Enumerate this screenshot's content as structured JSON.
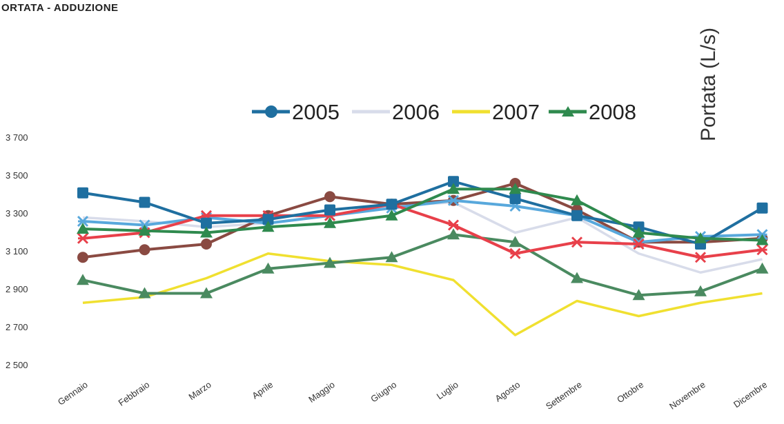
{
  "chart_data": {
    "type": "line",
    "title": "ORTATA - ADDUZIONE",
    "ylabel": "Portata (L/s)",
    "xlabel": "",
    "ylim": [
      2500,
      3700
    ],
    "yticks": [
      {
        "value": 3700,
        "label": "3 700"
      },
      {
        "value": 3500,
        "label": "3 500"
      },
      {
        "value": 3300,
        "label": "3 300"
      },
      {
        "value": 3100,
        "label": "3 100"
      },
      {
        "value": 2900,
        "label": "2 900"
      },
      {
        "value": 2700,
        "label": "2 700"
      },
      {
        "value": 2500,
        "label": "2 500"
      }
    ],
    "categories": [
      "Gennaio",
      "Febbraio",
      "Marzo",
      "Aprile",
      "Maggio",
      "Giugno",
      "Luglio",
      "Agosto",
      "Settembre",
      "Ottobre",
      "Novembre",
      "Dicembre"
    ],
    "legend_position": "top",
    "grid": false,
    "series": [
      {
        "name": "2005",
        "color": "#1f6fa0",
        "marker": "square",
        "in_legend": true,
        "values": [
          3410,
          3360,
          3250,
          3270,
          3320,
          3350,
          3470,
          3380,
          3290,
          3230,
          3140,
          3330
        ]
      },
      {
        "name": "2006",
        "color": "#d8dcea",
        "marker": "none",
        "in_legend": true,
        "values": [
          3280,
          3260,
          3230,
          3250,
          3290,
          3340,
          3360,
          3200,
          3280,
          3090,
          2990,
          3060
        ]
      },
      {
        "name": "2007",
        "color": "#f0e030",
        "marker": "none",
        "in_legend": true,
        "values": [
          2830,
          2860,
          2960,
          3090,
          3050,
          3030,
          2950,
          2660,
          2840,
          2760,
          2830,
          2880
        ]
      },
      {
        "name": "2008",
        "color": "#2f8a4e",
        "marker": "triangle",
        "in_legend": true,
        "values": [
          3220,
          3210,
          3200,
          3230,
          3250,
          3290,
          3430,
          3430,
          3370,
          3200,
          3170,
          3160
        ]
      },
      {
        "color": "#58a8dc",
        "marker": "x",
        "in_legend": false,
        "values": [
          3260,
          3240,
          3280,
          3250,
          3290,
          3330,
          3370,
          3340,
          3290,
          3150,
          3180,
          3190
        ]
      },
      {
        "color": "#8a4a42",
        "marker": "circle",
        "in_legend": false,
        "values": [
          3070,
          3110,
          3140,
          3290,
          3390,
          3350,
          3370,
          3460,
          3320,
          3150,
          3150,
          3170
        ]
      },
      {
        "color": "#e8404a",
        "marker": "x",
        "in_legend": false,
        "values": [
          3170,
          3200,
          3290,
          3290,
          3290,
          3350,
          3240,
          3090,
          3150,
          3140,
          3070,
          3110
        ]
      },
      {
        "color": "#4a8a60",
        "marker": "triangle",
        "in_legend": false,
        "values": [
          2950,
          2880,
          2880,
          3010,
          3040,
          3070,
          3190,
          3150,
          2960,
          2870,
          2890,
          3010
        ]
      }
    ]
  }
}
